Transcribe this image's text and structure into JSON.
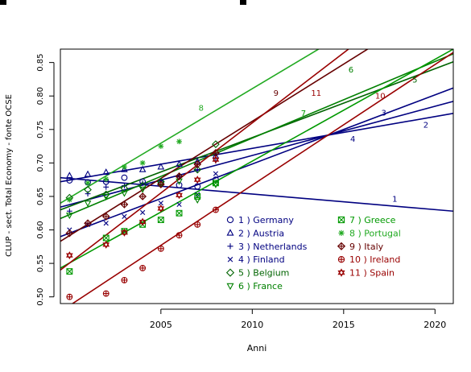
{
  "chart_data": {
    "type": "line",
    "title": "",
    "xlabel": "Anni",
    "ylabel": "CLUP - sect. Total Economy  - fonte OCSE",
    "xlim": [
      1999.5,
      2021
    ],
    "ylim": [
      0.49,
      0.87
    ],
    "x_ticks": [
      2005,
      2010,
      2015,
      2020
    ],
    "y_ticks": [
      0.5,
      0.55,
      0.6,
      0.65,
      0.7,
      0.75,
      0.8,
      0.85
    ],
    "legend_position": "bottom-right (inside plot)",
    "series": [
      {
        "id": 1,
        "name": "1 )  Germany",
        "color": "#000080",
        "symbol": "circle",
        "x": [
          2000,
          2001,
          2002,
          2003,
          2004,
          2005,
          2006,
          2007,
          2008
        ],
        "y": [
          0.674,
          0.671,
          0.672,
          0.678,
          0.672,
          0.67,
          0.667,
          0.665,
          0.675
        ],
        "trend": {
          "x0": 1999.5,
          "y0": 0.678,
          "x1": 2021,
          "y1": 0.628
        },
        "line_label": "1",
        "line_label_at": [
          2017.8,
          0.642
        ]
      },
      {
        "id": 2,
        "name": "2 )  Austria",
        "color": "#000080",
        "symbol": "triangle",
        "x": [
          2000,
          2001,
          2002,
          2003,
          2004,
          2005,
          2006,
          2007,
          2008
        ],
        "y": [
          0.681,
          0.683,
          0.686,
          0.69,
          0.69,
          0.694,
          0.698,
          0.702,
          0.71
        ],
        "trend": {
          "x0": 1999.5,
          "y0": 0.672,
          "x1": 2021,
          "y1": 0.774
        },
        "line_label": "2",
        "line_label_at": [
          2019.5,
          0.753
        ]
      },
      {
        "id": 3,
        "name": "3 )  Netherlands",
        "color": "#000080",
        "symbol": "plus",
        "x": [
          2000,
          2001,
          2002,
          2003,
          2004,
          2005,
          2006,
          2007,
          2008
        ],
        "y": [
          0.628,
          0.654,
          0.664,
          0.666,
          0.67,
          0.673,
          0.679,
          0.69,
          0.703
        ],
        "trend": {
          "x0": 1999.5,
          "y0": 0.634,
          "x1": 2021,
          "y1": 0.792
        },
        "line_label": "3",
        "line_label_at": [
          2017.2,
          0.771
        ]
      },
      {
        "id": 4,
        "name": "4 )  Finland",
        "color": "#000080",
        "symbol": "cross",
        "x": [
          2000,
          2001,
          2002,
          2003,
          2004,
          2005,
          2006,
          2007,
          2008
        ],
        "y": [
          0.6,
          0.608,
          0.61,
          0.62,
          0.626,
          0.64,
          0.638,
          0.653,
          0.684
        ],
        "trend": {
          "x0": 1999.5,
          "y0": 0.59,
          "x1": 2021,
          "y1": 0.812
        },
        "line_label": "4",
        "line_label_at": [
          2015.5,
          0.732
        ]
      },
      {
        "id": 5,
        "name": "5 )  Belgium",
        "color": "#006400",
        "symbol": "diamond",
        "x": [
          2000,
          2001,
          2002,
          2003,
          2004,
          2005,
          2006,
          2007,
          2008
        ],
        "y": [
          0.648,
          0.66,
          0.653,
          0.662,
          0.666,
          0.672,
          0.68,
          0.69,
          0.728
        ],
        "trend": {
          "x0": 1999.5,
          "y0": 0.63,
          "x1": 2021,
          "y1": 0.851
        },
        "line_label": "5",
        "line_label_at": [
          2018.9,
          0.82
        ]
      },
      {
        "id": 6,
        "name": "6 )  France",
        "color": "#008000",
        "symbol": "triangle-down",
        "x": [
          2000,
          2001,
          2002,
          2003,
          2004,
          2005,
          2006,
          2007,
          2008
        ],
        "y": [
          0.622,
          0.64,
          0.65,
          0.655,
          0.661,
          0.668,
          0.673,
          0.645,
          0.668
        ],
        "trend": {
          "x0": 1999.5,
          "y0": 0.617,
          "x1": 2021,
          "y1": 0.863
        },
        "line_label": "6",
        "line_label_at": [
          2015.4,
          0.835
        ]
      },
      {
        "id": 7,
        "name": "7 )  Greece",
        "color": "#009900",
        "symbol": "square-x",
        "x": [
          2000,
          2002,
          2003,
          2004,
          2005,
          2006,
          2007,
          2008
        ],
        "y": [
          0.538,
          0.588,
          0.598,
          0.608,
          0.615,
          0.625,
          0.65,
          0.67
        ],
        "trend": {
          "x0": 1999.5,
          "y0": 0.543,
          "x1": 2021,
          "y1": 0.87
        },
        "line_label": "7",
        "line_label_at": [
          2012.8,
          0.77
        ]
      },
      {
        "id": 8,
        "name": "8 )  Portugal",
        "color": "#22aa22",
        "symbol": "asterisk",
        "x": [
          2000,
          2001,
          2002,
          2003,
          2004,
          2005,
          2006
        ],
        "y": [
          0.645,
          0.67,
          0.676,
          0.694,
          0.7,
          0.725,
          0.732
        ],
        "trend": {
          "x0": 1999.5,
          "y0": 0.64,
          "x1": 2021,
          "y1": 0.99
        },
        "line_label": "8",
        "line_label_at": [
          2007.2,
          0.778
        ]
      },
      {
        "id": 9,
        "name": "9 )  Italy",
        "color": "#660000",
        "symbol": "circle-plus",
        "x": [
          2000,
          2001,
          2002,
          2003,
          2004,
          2005,
          2006,
          2007,
          2008
        ],
        "y": [
          0.595,
          0.61,
          0.62,
          0.638,
          0.65,
          0.668,
          0.68,
          0.698,
          0.715
        ],
        "trend": {
          "x0": 1999.5,
          "y0": 0.583,
          "x1": 2021,
          "y1": 0.95
        },
        "line_label": "9",
        "line_label_at": [
          2011.3,
          0.8
        ]
      },
      {
        "id": 10,
        "name": "10 )  Ireland",
        "color": "#990000",
        "symbol": "circle-line",
        "x": [
          2000,
          2002,
          2003,
          2004,
          2005,
          2006,
          2007,
          2008
        ],
        "y": [
          0.5,
          0.505,
          0.525,
          0.543,
          0.572,
          0.592,
          0.608,
          0.63
        ],
        "trend": {
          "x0": 1999.5,
          "y0": 0.478,
          "x1": 2021,
          "y1": 0.865
        },
        "line_label": "10",
        "line_label_at": [
          2017.0,
          0.796
        ]
      },
      {
        "id": 11,
        "name": "11 )  Spain",
        "color": "#990000",
        "symbol": "star-of-david",
        "x": [
          2000,
          2002,
          2003,
          2004,
          2005,
          2006,
          2007,
          2008
        ],
        "y": [
          0.562,
          0.578,
          0.596,
          0.612,
          0.632,
          0.652,
          0.675,
          0.705
        ],
        "trend": {
          "x0": 1999.5,
          "y0": 0.54,
          "x1": 2021,
          "y1": 0.99
        },
        "line_label": "11",
        "line_label_at": [
          2013.5,
          0.8
        ]
      }
    ]
  }
}
